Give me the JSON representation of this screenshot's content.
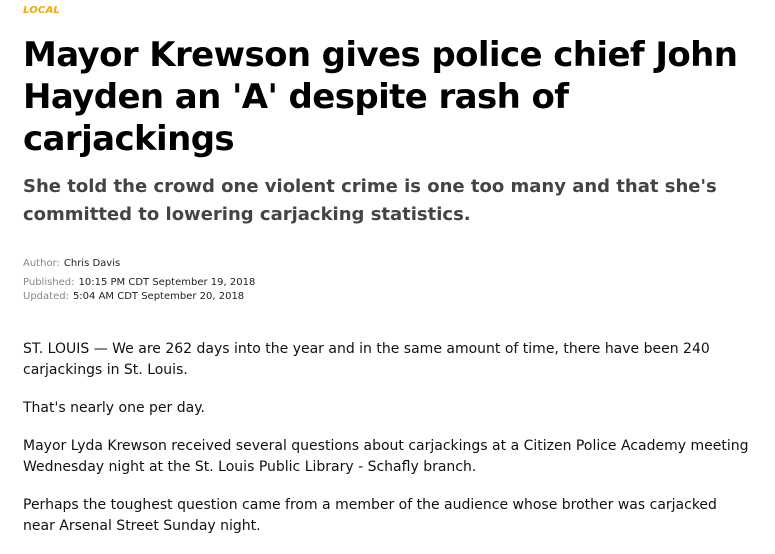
{
  "section": {
    "label": "LOCAL",
    "color": "#f2a800"
  },
  "article": {
    "headline": "Mayor Krewson gives police chief John Hayden an 'A' despite rash of carjackings",
    "subhead": "She told the crowd one violent crime is one too many and that she's committed to lowering carjacking statistics.",
    "meta": {
      "author_label": "Author:",
      "author": "Chris Davis",
      "published_label": "Published:",
      "published": "10:15 PM CDT September 19, 2018",
      "updated_label": "Updated:",
      "updated": "5:04 AM CDT September 20, 2018"
    },
    "paragraphs": [
      "ST. LOUIS — We are 262 days into the year and in the same amount of time, there have been 240 carjackings in St. Louis.",
      "That's nearly one per day.",
      "Mayor Lyda Krewson received several questions about carjackings at a Citizen Police Academy meeting Wednesday night at the St. Louis Public Library - Schafly branch.",
      "Perhaps the toughest question came from a member of the audience whose brother was carjacked near Arsenal Street Sunday night."
    ]
  }
}
